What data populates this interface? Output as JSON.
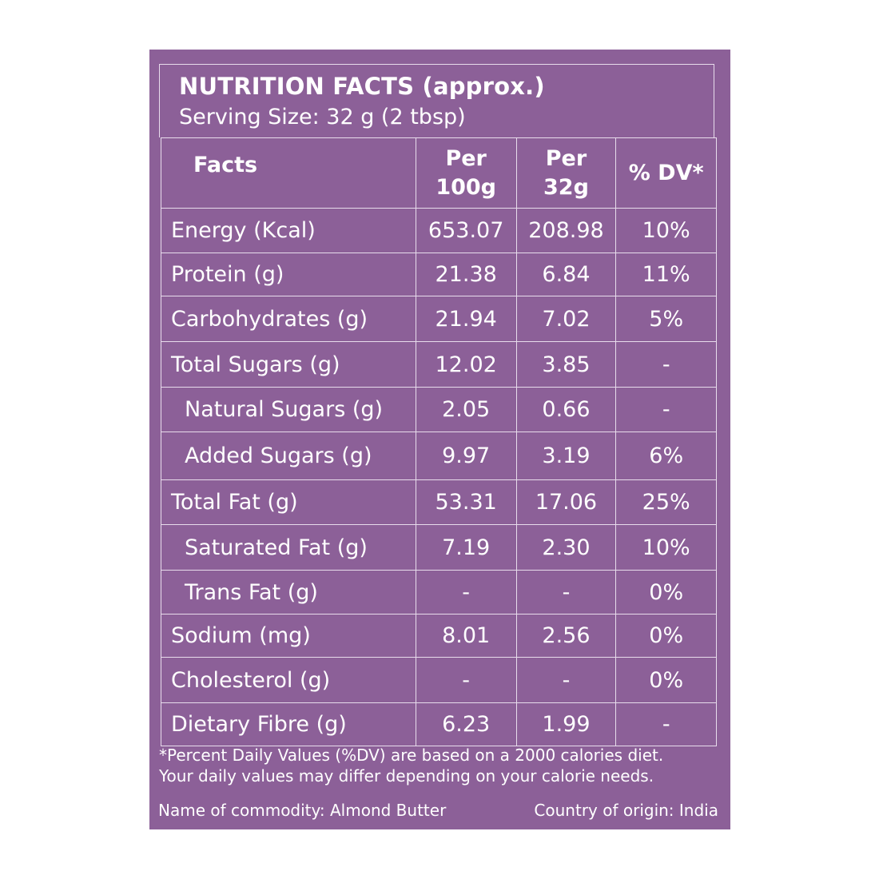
{
  "label": {
    "title": "NUTRITION FACTS (approx.)",
    "serving_size": "Serving Size: 32 g (2 tbsp)",
    "columns": {
      "facts": "Facts",
      "per100_line1": "Per",
      "per100_line2": "100g",
      "per32_line1": "Per",
      "per32_line2": "32g",
      "dv": "% DV*"
    },
    "rows": [
      {
        "name": "Energy (Kcal)",
        "per100": "653.07",
        "per32": "208.98",
        "dv": "10%"
      },
      {
        "name": "Protein (g)",
        "per100": "21.38",
        "per32": "6.84",
        "dv": "11%"
      },
      {
        "name": "Carbohydrates (g)",
        "per100": "21.94",
        "per32": "7.02",
        "dv": "5%"
      },
      {
        "name": "Total Sugars (g)",
        "per100": "12.02",
        "per32": "3.85",
        "dv": "-"
      },
      {
        "name": "Natural Sugars (g)",
        "per100": "2.05",
        "per32": "0.66",
        "dv": "-"
      },
      {
        "name": "Added Sugars (g)",
        "per100": "9.97",
        "per32": "3.19",
        "dv": "6%"
      },
      {
        "name": "Total Fat (g)",
        "per100": "53.31",
        "per32": "17.06",
        "dv": "25%"
      },
      {
        "name": "Saturated Fat (g)",
        "per100": "7.19",
        "per32": "2.30",
        "dv": "10%"
      },
      {
        "name": "Trans Fat (g)",
        "per100": "-",
        "per32": "-",
        "dv": "0%"
      },
      {
        "name": "Sodium (mg)",
        "per100": "8.01",
        "per32": "2.56",
        "dv": "0%"
      },
      {
        "name": "Cholesterol (g)",
        "per100": "-",
        "per32": "-",
        "dv": "0%"
      },
      {
        "name": "Dietary Fibre (g)",
        "per100": "6.23",
        "per32": "1.99",
        "dv": "-"
      }
    ],
    "footnote_line1": "*Percent Daily Values (%DV) are based on a 2000 calories diet.",
    "footnote_line2": "Your daily values may differ depending on your calorie needs.",
    "commodity": "Name of commodity: Almond Butter",
    "origin": "Country of origin: India"
  },
  "colors": {
    "panel": "#8c6098",
    "border": "#e8dcec",
    "text": "#ffffff"
  }
}
